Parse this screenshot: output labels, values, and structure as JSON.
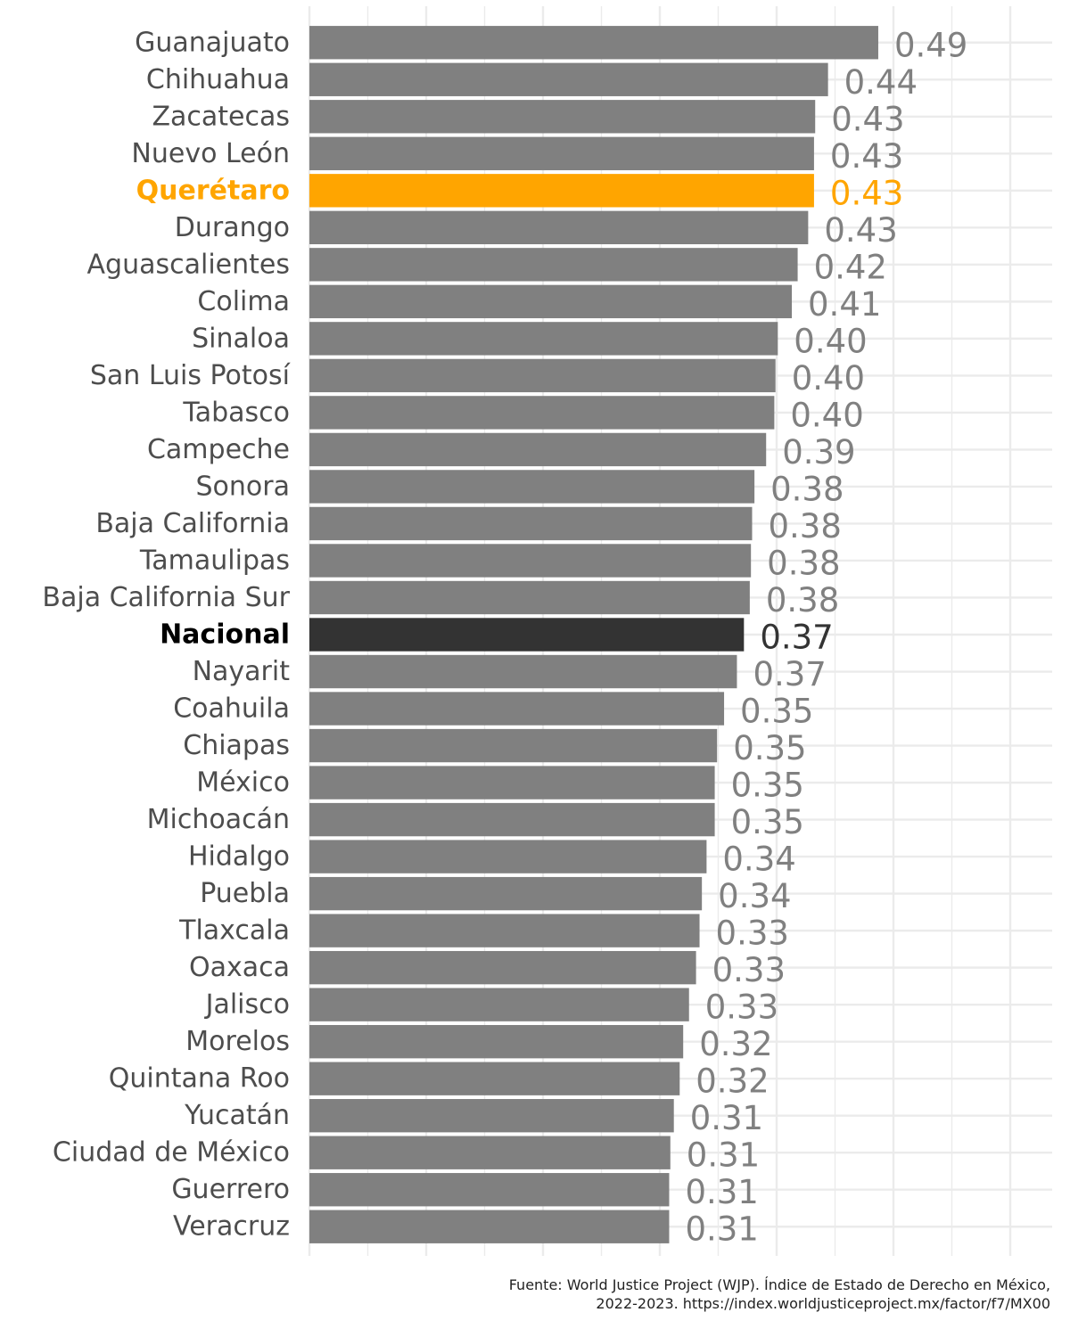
{
  "chart_data": {
    "type": "bar",
    "orientation": "horizontal",
    "categories": [
      "Guanajuato",
      "Chihuahua",
      "Zacatecas",
      "Nuevo León",
      "Querétaro",
      "Durango",
      "Aguascalientes",
      "Colima",
      "Sinaloa",
      "San Luis Potosí",
      "Tabasco",
      "Campeche",
      "Sonora",
      "Baja California",
      "Tamaulipas",
      "Baja California Sur",
      "Nacional",
      "Nayarit",
      "Coahuila",
      "Chiapas",
      "México",
      "Michoacán",
      "Hidalgo",
      "Puebla",
      "Tlaxcala",
      "Oaxaca",
      "Jalisco",
      "Morelos",
      "Quintana Roo",
      "Yucatán",
      "Ciudad de México",
      "Guerrero",
      "Veracruz"
    ],
    "values": [
      0.487,
      0.444,
      0.433,
      0.432,
      0.432,
      0.427,
      0.418,
      0.413,
      0.401,
      0.399,
      0.398,
      0.391,
      0.381,
      0.379,
      0.378,
      0.377,
      0.372,
      0.366,
      0.355,
      0.349,
      0.347,
      0.347,
      0.34,
      0.336,
      0.334,
      0.331,
      0.325,
      0.32,
      0.317,
      0.312,
      0.309,
      0.308,
      0.308
    ],
    "value_labels": [
      "0.49",
      "0.44",
      "0.43",
      "0.43",
      "0.43",
      "0.43",
      "0.42",
      "0.41",
      "0.40",
      "0.40",
      "0.40",
      "0.39",
      "0.38",
      "0.38",
      "0.38",
      "0.38",
      "0.37",
      "0.37",
      "0.35",
      "0.35",
      "0.35",
      "0.35",
      "0.34",
      "0.34",
      "0.33",
      "0.33",
      "0.33",
      "0.32",
      "0.32",
      "0.31",
      "0.31",
      "0.31",
      "0.31"
    ],
    "highlight": {
      "Querétaro": "#FFA500",
      "Nacional": "#333333"
    },
    "default_color": "#808080",
    "xlim": [
      0,
      0.6
    ],
    "grid": true,
    "x_tick_labels_shown": false
  },
  "caption": "Fuente: World Justice Project (WJP). Índice de Estado de Derecho en México,\n2022-2023. https://index.worldjusticeproject.mx/factor/f7/MX00"
}
